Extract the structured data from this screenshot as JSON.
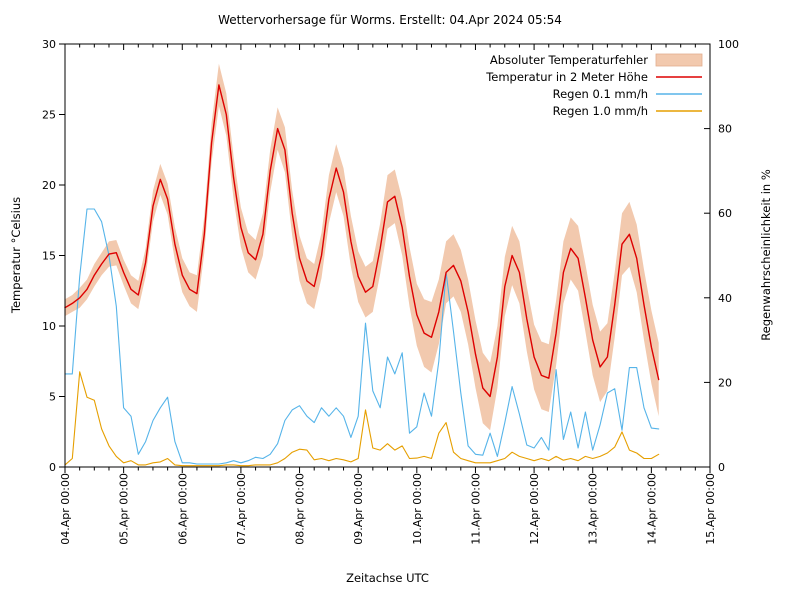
{
  "title": "Wettervorhersage für Worms. Erstellt: 04.Apr 2024 05:54",
  "chart_data": {
    "type": "line",
    "title": "Wettervorhersage für Worms. Erstellt: 04.Apr 2024 05:54",
    "xlabel": "Zeitachse UTC",
    "ylabel_left": "Temperatur °Celsius",
    "ylabel_right": "Regenwahrscheinlichkeit in %",
    "ylim_left": [
      0,
      30
    ],
    "yticks_left": [
      0,
      5,
      10,
      15,
      20,
      25,
      30
    ],
    "ylim_right": [
      0,
      100
    ],
    "yticks_right": [
      0,
      20,
      40,
      60,
      80,
      100
    ],
    "x_days_span": 11,
    "x_minor_tick_hours": [
      6,
      12,
      18
    ],
    "x_tick_labels": [
      "04.Apr 00:00",
      "05.Apr 00:00",
      "06.Apr 00:00",
      "07.Apr 00:00",
      "08.Apr 00:00",
      "09.Apr 00:00",
      "10.Apr 00:00",
      "11.Apr 00:00",
      "12.Apr 00:00",
      "13.Apr 00:00",
      "14.Apr 00:00",
      "15.Apr 00:00"
    ],
    "grid": false,
    "legend_position": "top-right-inside",
    "legend": [
      {
        "label": "Absoluter Temperaturfehler",
        "type": "band",
        "color": "#f2c9ae",
        "border": "#e2ae8e"
      },
      {
        "label": "Temperatur in 2 Meter Höhe",
        "type": "line",
        "color": "#dd0000"
      },
      {
        "label": "Regen 0.1 mm/h",
        "type": "line",
        "color": "#56b4e9"
      },
      {
        "label": "Regen 1.0 mm/h",
        "type": "line",
        "color": "#e69f00"
      }
    ],
    "series": {
      "hours_since_04apr_0000_utc": [
        0,
        3,
        6,
        9,
        12,
        15,
        18,
        21,
        24,
        27,
        30,
        33,
        36,
        39,
        42,
        45,
        48,
        51,
        54,
        57,
        60,
        63,
        66,
        69,
        72,
        75,
        78,
        81,
        84,
        87,
        90,
        93,
        96,
        99,
        102,
        105,
        108,
        111,
        114,
        117,
        120,
        123,
        126,
        129,
        132,
        135,
        138,
        141,
        144,
        147,
        150,
        153,
        156,
        159,
        162,
        165,
        168,
        171,
        174,
        177,
        180,
        183,
        186,
        189,
        192,
        195,
        198,
        201,
        204,
        207,
        210,
        213,
        216,
        219,
        222,
        225,
        228,
        231,
        234,
        237,
        240,
        243
      ],
      "temperature_c": [
        11.3,
        11.6,
        12.0,
        12.6,
        13.6,
        14.4,
        15.1,
        15.2,
        13.8,
        12.6,
        12.2,
        14.5,
        18.5,
        20.4,
        19.0,
        15.8,
        13.6,
        12.6,
        12.3,
        16.5,
        23.0,
        27.1,
        25.0,
        20.5,
        17.0,
        15.2,
        14.7,
        16.5,
        21.0,
        24.0,
        22.5,
        18.0,
        14.8,
        13.2,
        12.8,
        15.0,
        19.0,
        21.2,
        19.5,
        16.0,
        13.5,
        12.4,
        12.8,
        15.5,
        18.8,
        19.2,
        17.0,
        13.5,
        10.8,
        9.5,
        9.2,
        11.0,
        13.8,
        14.3,
        13.2,
        11.0,
        8.0,
        5.6,
        5.0,
        7.8,
        12.8,
        15.0,
        13.8,
        10.5,
        7.8,
        6.5,
        6.3,
        9.5,
        13.8,
        15.5,
        14.8,
        12.0,
        9.0,
        7.1,
        7.8,
        11.5,
        15.8,
        16.5,
        14.8,
        11.5,
        8.5,
        6.2
      ],
      "temp_abs_error_c": [
        0.6,
        0.6,
        0.7,
        0.7,
        0.8,
        0.8,
        0.9,
        0.9,
        0.9,
        1.0,
        1.0,
        1.0,
        1.1,
        1.1,
        1.1,
        1.2,
        1.2,
        1.2,
        1.3,
        1.3,
        1.4,
        1.5,
        1.5,
        1.5,
        1.4,
        1.4,
        1.4,
        1.5,
        1.5,
        1.5,
        1.6,
        1.6,
        1.6,
        1.6,
        1.6,
        1.6,
        1.7,
        1.7,
        1.7,
        1.8,
        1.8,
        1.8,
        1.8,
        1.8,
        1.9,
        1.9,
        2.0,
        2.1,
        2.2,
        2.4,
        2.5,
        2.3,
        2.2,
        2.2,
        2.2,
        2.3,
        2.4,
        2.5,
        2.4,
        2.2,
        2.1,
        2.1,
        2.2,
        2.3,
        2.3,
        2.4,
        2.4,
        2.3,
        2.2,
        2.2,
        2.3,
        2.4,
        2.5,
        2.5,
        2.4,
        2.3,
        2.2,
        2.3,
        2.4,
        2.5,
        2.6,
        2.6
      ],
      "rain_01mmh_pct": [
        22,
        22,
        45,
        61,
        61,
        58,
        50,
        38,
        14,
        12,
        3,
        6,
        11,
        14,
        16.5,
        6,
        1,
        1,
        0.7,
        0.7,
        0.7,
        0.7,
        1,
        1.5,
        1,
        1.5,
        2.3,
        2,
        3,
        5.5,
        11,
        13.5,
        14.5,
        12,
        10.5,
        14,
        12,
        14,
        12,
        7,
        12,
        34,
        18,
        14,
        26,
        22,
        27,
        8,
        9.5,
        17.5,
        12,
        25,
        46,
        32,
        17.5,
        5,
        3,
        2.8,
        8,
        2.5,
        10.5,
        19,
        12.5,
        5.2,
        4.5,
        7,
        4,
        23,
        6.5,
        13,
        4.5,
        13,
        4,
        10,
        17.5,
        18.5,
        8.7,
        23.5,
        23.5,
        14,
        9.2,
        9
      ],
      "rain_10mmh_pct": [
        0.5,
        2,
        22.5,
        16.5,
        15.8,
        9,
        5,
        2.5,
        1,
        1.5,
        0.5,
        0.5,
        1,
        1.2,
        2,
        0.5,
        0.3,
        0.3,
        0.3,
        0.3,
        0.3,
        0.3,
        0.5,
        0.5,
        0.3,
        0.3,
        0.5,
        0.5,
        0.5,
        1,
        2,
        3.5,
        4.2,
        4,
        1.7,
        2,
        1.5,
        2,
        1.7,
        1.2,
        2,
        13.5,
        4.5,
        4,
        5.5,
        4,
        5,
        2,
        2.1,
        2.5,
        2,
        8,
        10.5,
        3.5,
        2,
        1.5,
        1,
        1,
        1,
        1.5,
        2,
        3.5,
        2.5,
        2,
        1.5,
        2,
        1.5,
        2.5,
        1.6,
        2,
        1.5,
        2.5,
        2,
        2.5,
        3.3,
        4.7,
        8.3,
        4,
        3.3,
        2,
        2,
        3
      ]
    }
  }
}
